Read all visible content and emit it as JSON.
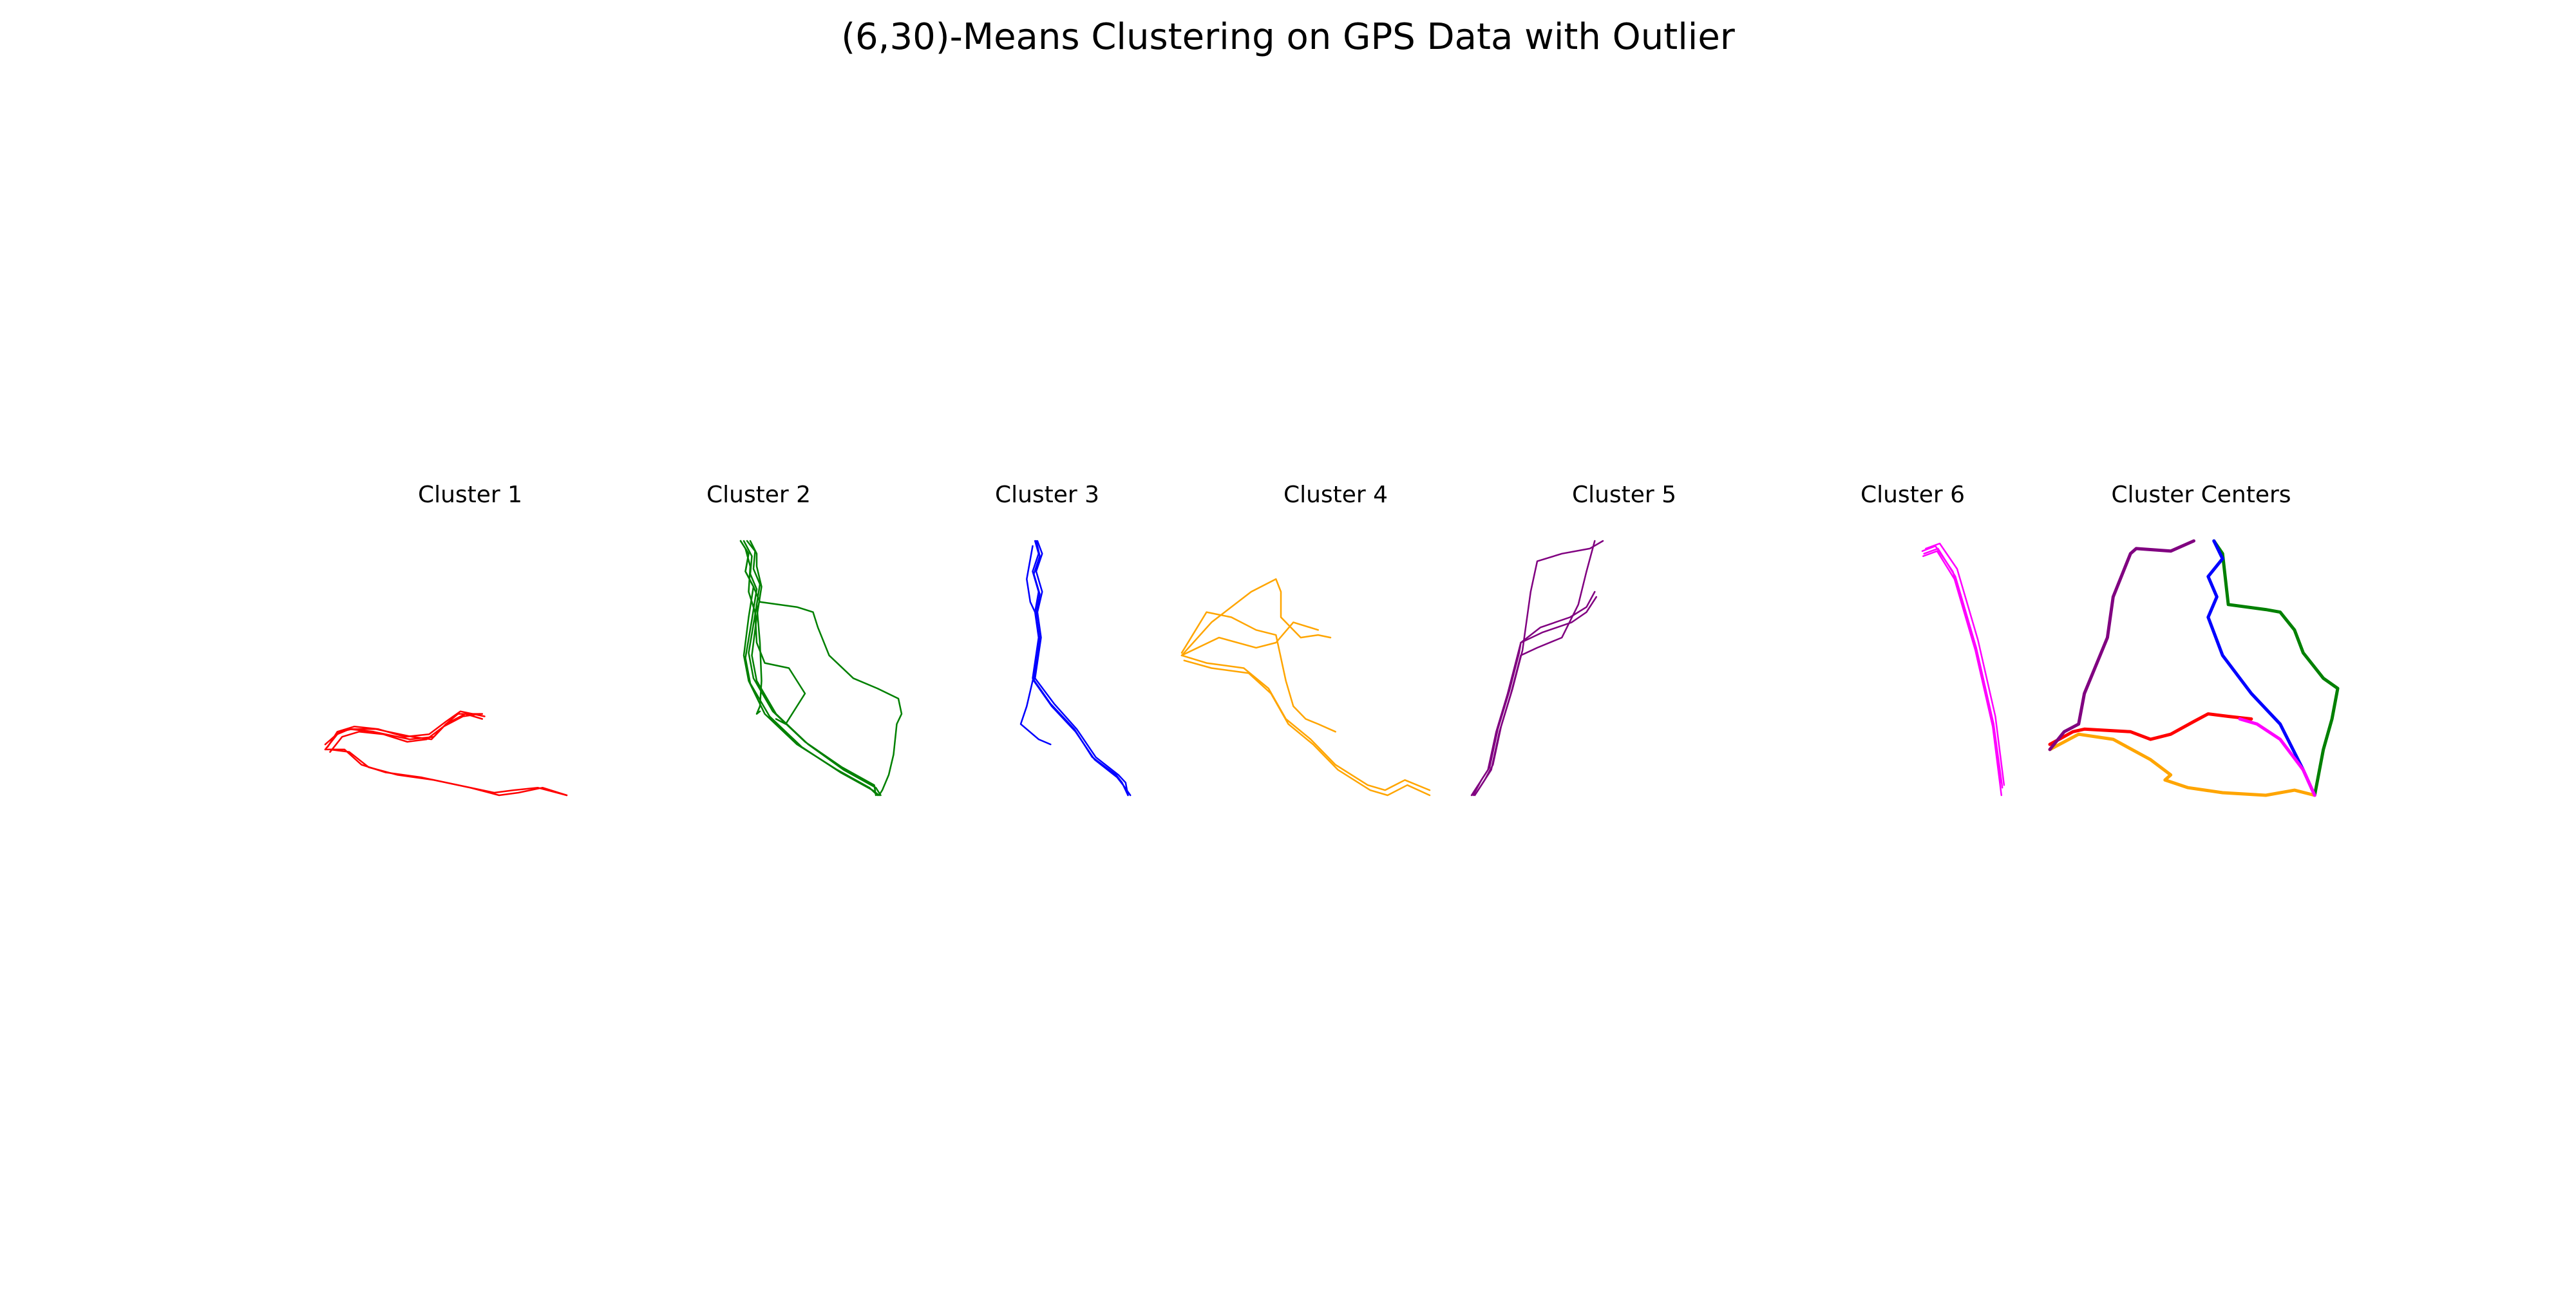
{
  "title": "(6,30)-Means Clustering on GPS Data with Outlier",
  "panel_titles": [
    "Cluster 1",
    "Cluster 2",
    "Cluster 3",
    "Cluster 4",
    "Cluster 5",
    "Cluster 6",
    "Cluster Centers"
  ],
  "colors": {
    "cluster_1": "#ff0000",
    "cluster_2": "#008000",
    "cluster_3": "#0000ff",
    "cluster_4": "#ffa500",
    "cluster_5": "#800080",
    "cluster_6": "#ff00ff"
  },
  "chart_data": {
    "type": "line",
    "axes_visible": false,
    "grid": false,
    "x_range": [
      0,
      1
    ],
    "y_range": [
      0,
      1
    ],
    "panels": [
      {
        "name": "Cluster 1",
        "color": "#ff0000",
        "series": [
          {
            "x": [
              0.0,
              0.05,
              0.1,
              0.2,
              0.35,
              0.45,
              0.5,
              0.55,
              0.65
            ],
            "y": [
              0.18,
              0.24,
              0.26,
              0.25,
              0.22,
              0.23,
              0.28,
              0.32,
              0.32
            ]
          },
          {
            "x": [
              0.01,
              0.05,
              0.12,
              0.22,
              0.33,
              0.43,
              0.5,
              0.56,
              0.66
            ],
            "y": [
              0.19,
              0.25,
              0.27,
              0.26,
              0.23,
              0.24,
              0.29,
              0.33,
              0.31
            ]
          },
          {
            "x": [
              0.02,
              0.07,
              0.14,
              0.24,
              0.34,
              0.42,
              0.49,
              0.57,
              0.64
            ],
            "y": [
              0.17,
              0.23,
              0.25,
              0.24,
              0.21,
              0.22,
              0.27,
              0.31,
              0.32
            ]
          },
          {
            "x": [
              0.0,
              0.06,
              0.11,
              0.21,
              0.36,
              0.44,
              0.5,
              0.58,
              0.65
            ],
            "y": [
              0.2,
              0.25,
              0.26,
              0.26,
              0.23,
              0.22,
              0.28,
              0.32,
              0.3
            ]
          },
          {
            "x": [
              0.0,
              0.08,
              0.15,
              0.25,
              0.4,
              0.55,
              0.7,
              0.78,
              0.88,
              1.0
            ],
            "y": [
              0.18,
              0.18,
              0.12,
              0.09,
              0.07,
              0.04,
              0.01,
              0.02,
              0.03,
              0.0
            ]
          },
          {
            "x": [
              0.02,
              0.1,
              0.18,
              0.3,
              0.45,
              0.6,
              0.72,
              0.8,
              0.9,
              1.0
            ],
            "y": [
              0.18,
              0.17,
              0.11,
              0.08,
              0.06,
              0.03,
              0.0,
              0.01,
              0.03,
              0.0
            ]
          }
        ]
      },
      {
        "name": "Cluster 2",
        "color": "#008000",
        "series": [
          {
            "x": [
              0.0,
              0.05,
              0.03,
              0.08,
              0.05,
              0.02,
              0.05,
              0.15,
              0.35,
              0.6,
              0.8,
              0.85
            ],
            "y": [
              1.0,
              0.95,
              0.88,
              0.82,
              0.7,
              0.55,
              0.45,
              0.32,
              0.2,
              0.1,
              0.03,
              0.0
            ]
          },
          {
            "x": [
              0.02,
              0.07,
              0.06,
              0.1,
              0.07,
              0.03,
              0.06,
              0.18,
              0.38,
              0.62,
              0.82,
              0.86
            ],
            "y": [
              1.0,
              0.94,
              0.87,
              0.81,
              0.69,
              0.54,
              0.44,
              0.31,
              0.19,
              0.09,
              0.02,
              0.0
            ]
          },
          {
            "x": [
              0.04,
              0.09,
              0.08,
              0.12,
              0.09,
              0.05,
              0.08,
              0.2,
              0.4,
              0.63,
              0.83,
              0.84
            ],
            "y": [
              1.0,
              0.96,
              0.89,
              0.83,
              0.71,
              0.56,
              0.46,
              0.33,
              0.21,
              0.11,
              0.04,
              0.0
            ]
          },
          {
            "x": [
              0.06,
              0.1,
              0.1,
              0.13,
              0.1,
              0.07,
              0.1,
              0.22,
              0.42,
              0.64,
              0.84,
              0.87
            ],
            "y": [
              1.0,
              0.95,
              0.9,
              0.82,
              0.7,
              0.55,
              0.45,
              0.32,
              0.2,
              0.1,
              0.03,
              0.0
            ]
          },
          {
            "x": [
              0.03,
              0.06,
              0.05,
              0.09,
              0.1,
              0.15,
              0.3,
              0.4,
              0.28,
              0.22
            ],
            "y": [
              0.97,
              0.9,
              0.8,
              0.72,
              0.6,
              0.52,
              0.5,
              0.4,
              0.28,
              0.3
            ]
          },
          {
            "x": [
              0.1,
              0.12,
              0.13,
              0.12,
              0.1,
              0.12
            ],
            "y": [
              0.75,
              0.6,
              0.45,
              0.35,
              0.32,
              0.33
            ]
          },
          {
            "x": [
              0.0,
              0.05,
              0.03,
              0.08,
              0.12,
              0.35,
              0.45,
              0.48,
              0.55,
              0.7,
              0.85,
              0.98,
              1.0,
              0.97,
              0.95,
              0.92,
              0.88,
              0.86
            ],
            "y": [
              1.0,
              0.95,
              0.88,
              0.82,
              0.76,
              0.74,
              0.72,
              0.66,
              0.55,
              0.46,
              0.42,
              0.38,
              0.32,
              0.28,
              0.16,
              0.08,
              0.02,
              0.0
            ]
          }
        ]
      },
      {
        "name": "Cluster 3",
        "color": "#0000ff",
        "series": [
          {
            "x": [
              0.12,
              0.15,
              0.1,
              0.15,
              0.12,
              0.15,
              0.1,
              0.25,
              0.45,
              0.6,
              0.8,
              0.85,
              0.9
            ],
            "y": [
              1.0,
              0.95,
              0.88,
              0.8,
              0.72,
              0.62,
              0.46,
              0.36,
              0.26,
              0.15,
              0.08,
              0.05,
              0.0
            ]
          },
          {
            "x": [
              0.13,
              0.16,
              0.11,
              0.16,
              0.13,
              0.16,
              0.11,
              0.26,
              0.46,
              0.62,
              0.81,
              0.86,
              0.92
            ],
            "y": [
              1.0,
              0.94,
              0.87,
              0.79,
              0.71,
              0.61,
              0.45,
              0.35,
              0.25,
              0.14,
              0.07,
              0.04,
              0.0
            ]
          },
          {
            "x": [
              0.14,
              0.18,
              0.13,
              0.18,
              0.14,
              0.17,
              0.12,
              0.28,
              0.47,
              0.63,
              0.82,
              0.88,
              0.9
            ],
            "y": [
              1.0,
              0.95,
              0.88,
              0.8,
              0.72,
              0.62,
              0.46,
              0.36,
              0.26,
              0.15,
              0.08,
              0.05,
              0.0
            ]
          },
          {
            "x": [
              0.1,
              0.05,
              0.08,
              0.12
            ],
            "y": [
              0.98,
              0.85,
              0.76,
              0.72
            ]
          },
          {
            "x": [
              0.15,
              0.1,
              0.05,
              0.0,
              0.15,
              0.25
            ],
            "y": [
              0.56,
              0.45,
              0.35,
              0.28,
              0.22,
              0.2
            ]
          }
        ]
      },
      {
        "name": "Cluster 4",
        "color": "#ffa500",
        "series": [
          {
            "x": [
              0.0,
              0.1,
              0.25,
              0.35,
              0.42,
              0.52,
              0.62,
              0.75,
              0.82,
              0.9,
              1.0
            ],
            "y": [
              0.55,
              0.52,
              0.5,
              0.42,
              0.3,
              0.22,
              0.12,
              0.04,
              0.02,
              0.06,
              0.02
            ]
          },
          {
            "x": [
              0.01,
              0.12,
              0.27,
              0.36,
              0.43,
              0.53,
              0.63,
              0.76,
              0.83,
              0.91,
              1.0
            ],
            "y": [
              0.53,
              0.5,
              0.48,
              0.4,
              0.28,
              0.2,
              0.1,
              0.02,
              0.0,
              0.04,
              0.0
            ]
          },
          {
            "x": [
              0.0,
              0.1,
              0.2,
              0.3,
              0.38,
              0.42,
              0.45,
              0.5,
              0.55,
              0.62
            ],
            "y": [
              0.56,
              0.72,
              0.7,
              0.65,
              0.63,
              0.45,
              0.35,
              0.3,
              0.28,
              0.25
            ]
          },
          {
            "x": [
              0.0,
              0.12,
              0.28,
              0.38,
              0.4,
              0.4,
              0.48,
              0.55,
              0.6
            ],
            "y": [
              0.55,
              0.68,
              0.8,
              0.85,
              0.8,
              0.7,
              0.62,
              0.63,
              0.62
            ]
          },
          {
            "x": [
              0.0,
              0.15,
              0.3,
              0.38,
              0.45,
              0.55
            ],
            "y": [
              0.55,
              0.62,
              0.58,
              0.6,
              0.68,
              0.65
            ]
          }
        ]
      },
      {
        "name": "Cluster 5",
        "color": "#800080",
        "series": [
          {
            "x": [
              0.0,
              0.05,
              0.1,
              0.15,
              0.22,
              0.28,
              0.3,
              0.42,
              0.6,
              0.7,
              0.75
            ],
            "y": [
              0.0,
              0.05,
              0.1,
              0.25,
              0.4,
              0.55,
              0.6,
              0.66,
              0.7,
              0.74,
              0.8
            ]
          },
          {
            "x": [
              0.01,
              0.06,
              0.11,
              0.16,
              0.23,
              0.29,
              0.3,
              0.43,
              0.61,
              0.7,
              0.76
            ],
            "y": [
              0.0,
              0.06,
              0.11,
              0.26,
              0.41,
              0.56,
              0.6,
              0.64,
              0.68,
              0.72,
              0.78
            ]
          },
          {
            "x": [
              0.02,
              0.07,
              0.12,
              0.17,
              0.24,
              0.3,
              0.4,
              0.55,
              0.65,
              0.7,
              0.75
            ],
            "y": [
              0.0,
              0.05,
              0.1,
              0.25,
              0.4,
              0.55,
              0.58,
              0.62,
              0.75,
              0.88,
              1.0
            ]
          },
          {
            "x": [
              0.03,
              0.08,
              0.13,
              0.18,
              0.25,
              0.31,
              0.36,
              0.4,
              0.55,
              0.72,
              0.8
            ],
            "y": [
              0.01,
              0.06,
              0.12,
              0.27,
              0.42,
              0.57,
              0.8,
              0.92,
              0.95,
              0.97,
              1.0
            ]
          }
        ]
      },
      {
        "name": "Cluster 6",
        "color": "#ff00ff",
        "series": [
          {
            "x": [
              0.0,
              0.15,
              0.35,
              0.6,
              0.8,
              0.9
            ],
            "y": [
              0.96,
              0.98,
              0.88,
              0.6,
              0.3,
              0.05
            ]
          },
          {
            "x": [
              0.02,
              0.18,
              0.38,
              0.62,
              0.82,
              0.92
            ],
            "y": [
              0.95,
              0.97,
              0.86,
              0.58,
              0.28,
              0.03
            ]
          },
          {
            "x": [
              0.04,
              0.2,
              0.4,
              0.64,
              0.84,
              0.94
            ],
            "y": [
              0.97,
              0.99,
              0.89,
              0.61,
              0.31,
              0.04
            ]
          },
          {
            "x": [
              0.01,
              0.17,
              0.37,
              0.61,
              0.81,
              0.91
            ],
            "y": [
              0.94,
              0.96,
              0.85,
              0.57,
              0.27,
              0.0
            ]
          }
        ]
      },
      {
        "name": "Cluster Centers",
        "color": "#000000",
        "series": [
          {
            "name": "",
            "color": "#ff0000",
            "x": [
              0.0,
              0.08,
              0.12,
              0.28,
              0.35,
              0.42,
              0.5,
              0.55,
              0.62,
              0.7
            ],
            "y": [
              0.2,
              0.25,
              0.26,
              0.25,
              0.22,
              0.24,
              0.29,
              0.32,
              0.31,
              0.3
            ]
          },
          {
            "name": "",
            "color": "#008000",
            "x": [
              0.57,
              0.6,
              0.62,
              0.75,
              0.8,
              0.85,
              0.88,
              0.95,
              1.0,
              0.98,
              0.95,
              0.92
            ],
            "y": [
              1.0,
              0.95,
              0.75,
              0.73,
              0.72,
              0.65,
              0.56,
              0.46,
              0.42,
              0.3,
              0.18,
              0.0
            ]
          },
          {
            "name": "",
            "color": "#0000ff",
            "x": [
              0.57,
              0.6,
              0.55,
              0.58,
              0.55,
              0.6,
              0.7,
              0.8,
              0.88,
              0.92
            ],
            "y": [
              1.0,
              0.93,
              0.86,
              0.78,
              0.7,
              0.55,
              0.4,
              0.28,
              0.1,
              0.0
            ]
          },
          {
            "name": "",
            "color": "#ffa500",
            "x": [
              0.0,
              0.1,
              0.22,
              0.35,
              0.42,
              0.4,
              0.48,
              0.6,
              0.75,
              0.85,
              0.92
            ],
            "y": [
              0.18,
              0.24,
              0.22,
              0.14,
              0.08,
              0.06,
              0.03,
              0.01,
              0.0,
              0.02,
              0.0
            ]
          },
          {
            "name": "",
            "color": "#800080",
            "x": [
              0.0,
              0.05,
              0.1,
              0.12,
              0.2,
              0.22,
              0.28,
              0.3,
              0.42,
              0.5
            ],
            "y": [
              0.18,
              0.25,
              0.28,
              0.4,
              0.62,
              0.78,
              0.95,
              0.97,
              0.96,
              1.0
            ]
          },
          {
            "name": "",
            "color": "#ff00ff",
            "x": [
              0.66,
              0.72,
              0.8,
              0.88,
              0.92
            ],
            "y": [
              0.3,
              0.28,
              0.22,
              0.1,
              0.0
            ]
          }
        ]
      }
    ]
  }
}
